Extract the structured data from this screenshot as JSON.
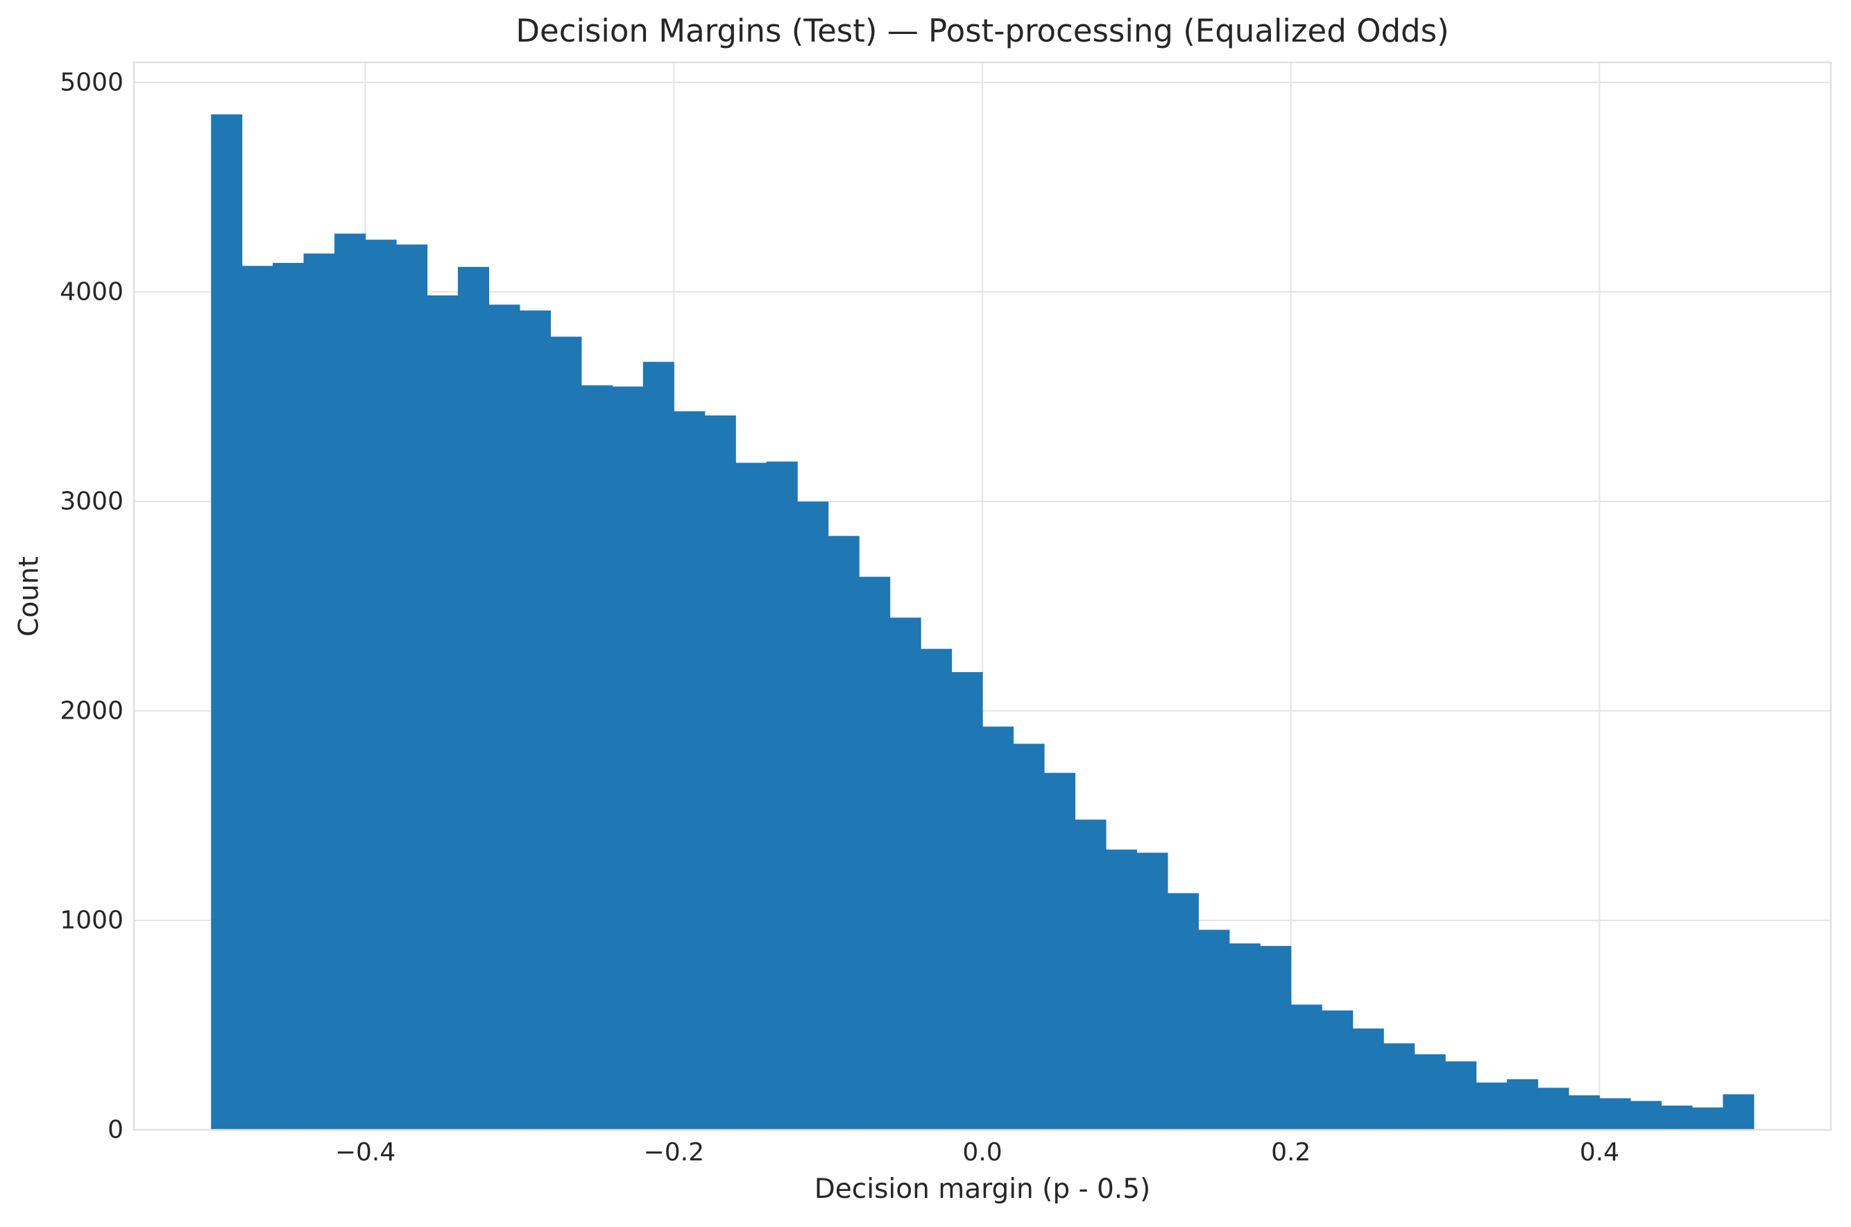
{
  "title": "Decision Margins (Test) — Post-processing (Equalized Odds)",
  "axes": {
    "xlabel": "Decision margin (p - 0.5)",
    "ylabel": "Count"
  },
  "chart_data": {
    "type": "bar",
    "subtype": "histogram",
    "title": "Decision Margins (Test) — Post-processing (Equalized Odds)",
    "xlabel": "Decision margin (p - 0.5)",
    "ylabel": "Count",
    "bin_start": -0.5,
    "bin_width": 0.02,
    "counts": [
      4847,
      4124,
      4138,
      4183,
      4278,
      4249,
      4226,
      3983,
      4119,
      3939,
      3911,
      3786,
      3554,
      3548,
      3666,
      3430,
      3410,
      3184,
      3190,
      2999,
      2835,
      2640,
      2445,
      2296,
      2185,
      1925,
      1843,
      1704,
      1481,
      1338,
      1323,
      1130,
      955,
      890,
      878,
      598,
      570,
      484,
      413,
      361,
      327,
      226,
      242,
      201,
      165,
      151,
      138,
      116,
      107,
      170
    ],
    "xlim": [
      -0.55,
      0.55
    ],
    "ylim": [
      0,
      5095
    ],
    "xticks": {
      "values": [
        -0.4,
        -0.2,
        0.0,
        0.2,
        0.4
      ],
      "labels": [
        "−0.4",
        "−0.2",
        "0.0",
        "0.2",
        "0.4"
      ]
    },
    "yticks": {
      "values": [
        0,
        1000,
        2000,
        3000,
        4000,
        5000
      ],
      "labels": [
        "0",
        "1000",
        "2000",
        "3000",
        "4000",
        "5000"
      ]
    },
    "grid": true,
    "legend": false,
    "bar_color": "#1f77b4",
    "grid_color": "#e4e4e4",
    "spine_color": "#e0e0e0",
    "text_color": "#262626"
  }
}
